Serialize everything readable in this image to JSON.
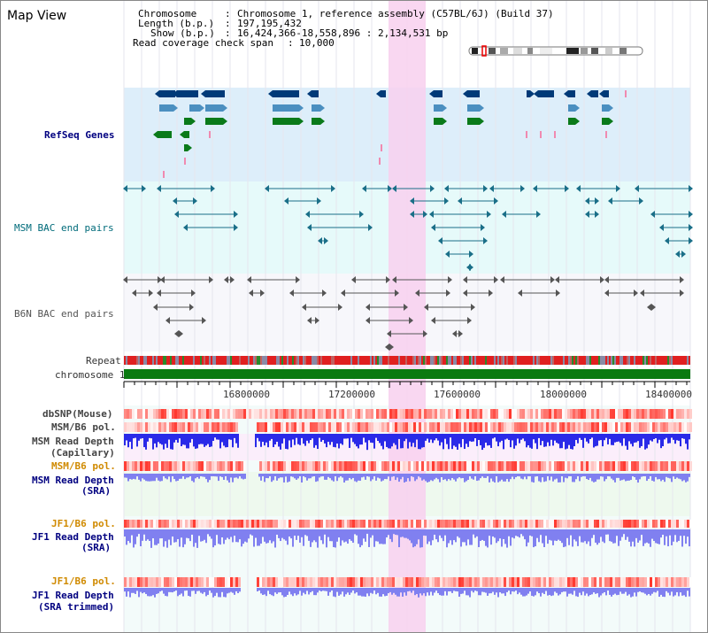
{
  "title": "Map View",
  "info": {
    "chromosome_label": "Chromosome",
    "chromosome_value": "Chromosome 1, reference assembly (C57BL/6J) (Build 37)",
    "length_label": "Length (b.p.)",
    "length_value": "197,195,432",
    "show_label": "Show (b.p.)",
    "show_value": "16,424,366-18,558,896 : 2,134,531 bp",
    "coverage_label": "Read coverage check span",
    "coverage_value": "10,000"
  },
  "tracks": {
    "refseq": "RefSeq Genes",
    "msm_bac": "MSM BAC end pairs",
    "b6n_bac": "B6N BAC end pairs",
    "repeat": "Repeat",
    "chromosome": "chromosome 1",
    "dbsnp": "dbSNP(Mouse)",
    "msm_b6_pol": "MSM/B6 pol.",
    "msm_read_depth": "MSM Read Depth",
    "capillary": "(Capillary)",
    "msm_b6_pol_sra": "MSM/B6 pol.",
    "msm_read_depth_sra": "MSM Read Depth",
    "sra": "(SRA)",
    "jf1_b6_pol": "JF1/B6 pol.",
    "jf1_read_depth": "JF1 Read Depth",
    "jf1_sra": "(SRA)",
    "jf1_b6_pol2": "JF1/B6 pol.",
    "jf1_read_depth2": "JF1 Read Depth",
    "jf1_sra_trimmed": "(SRA trimmed)"
  },
  "axis_ticks": [
    "16800000",
    "17200000",
    "17600000",
    "18000000",
    "18400000"
  ],
  "colors": {
    "refseq_bg": "#ddeefa",
    "bac_msm_bg": "#e6fafa",
    "bac_b6n_bg": "#f7f7fb",
    "highlight": "#f8d0ef",
    "gene_navy": "#003a78",
    "gene_steel": "#4b8fc0",
    "gene_green": "#0a7a1a",
    "chromosome_green": "#0a7a10",
    "depth_blue": "#2a2ae8",
    "depth_light": "#8080f0"
  }
}
